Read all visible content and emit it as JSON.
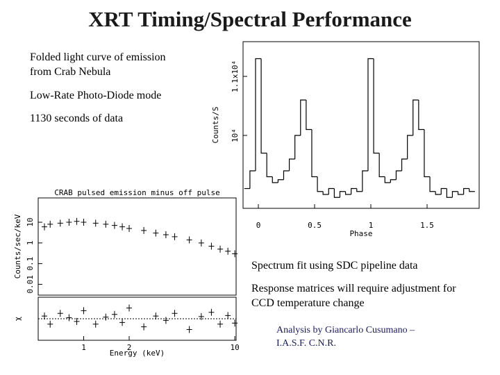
{
  "title": "XRT Timing/Spectral Performance",
  "notes": {
    "light_curve": [
      "Folded light curve of emission from Crab Nebula",
      "Low-Rate Photo-Diode mode",
      "1130 seconds of data"
    ],
    "spectrum": [
      "Spectrum fit using SDC pipeline data",
      "Response matrices will require adjustment for CCD temperature change"
    ],
    "credit": "Analysis by Giancarlo Cusumano – I.A.S.F. C.N.R."
  },
  "chart_data": [
    {
      "type": "step",
      "xlabel": "Phase",
      "ylabel": "Counts/S",
      "x": [
        -0.1,
        -0.05,
        0,
        0.05,
        0.1,
        0.15,
        0.2,
        0.25,
        0.3,
        0.35,
        0.4,
        0.45,
        0.5,
        0.55,
        0.6,
        0.65,
        0.7,
        0.75,
        0.8,
        0.85,
        0.9,
        0.95,
        1,
        1.05,
        1.1,
        1.15,
        1.2,
        1.25,
        1.3,
        1.35,
        1.4,
        1.45,
        1.5,
        1.55,
        1.6,
        1.65,
        1.7,
        1.75,
        1.8,
        1.85,
        1.9
      ],
      "values": [
        9100,
        9400,
        11300,
        9700,
        9300,
        9200,
        9250,
        9400,
        9600,
        10000,
        10600,
        10100,
        9300,
        9050,
        9000,
        9100,
        8950,
        9050,
        9000,
        9100,
        9050,
        9400,
        11300,
        9700,
        9300,
        9200,
        9250,
        9400,
        9600,
        10000,
        10600,
        10100,
        9300,
        9050,
        9000,
        9100,
        8950,
        9050,
        9000,
        9100,
        9050
      ],
      "color": "#000000",
      "xlim": [
        -0.136,
        1.963
      ],
      "xticks": [
        0,
        0.5,
        1,
        1.5
      ],
      "ylim": [
        8765,
        11588
      ],
      "yticks": [
        {
          "value": 10000,
          "label": "10⁴"
        },
        {
          "value": 11000,
          "label": "1.1x10⁴"
        }
      ]
    },
    {
      "type": "scatter",
      "title": "CRAB pulsed emission minus off pulse",
      "ylabel": "Counts/sec/keV",
      "log_x": true,
      "log_y": true,
      "x": [
        0.55,
        0.6,
        0.7,
        0.8,
        0.9,
        1,
        1.2,
        1.4,
        1.6,
        1.8,
        2,
        2.5,
        3,
        3.5,
        4,
        5,
        6,
        7,
        8,
        9,
        10
      ],
      "values": [
        6,
        8,
        9,
        10,
        11,
        10,
        9,
        8,
        7,
        6,
        5,
        4,
        3,
        2.5,
        2,
        1.4,
        1,
        0.7,
        0.5,
        0.4,
        0.3
      ],
      "color": "#000000",
      "xlim": [
        0.5,
        10.2
      ],
      "ylim": [
        0.003,
        150
      ],
      "yticks": [
        10,
        1,
        0.1,
        0.01
      ]
    },
    {
      "type": "scatter",
      "xlabel": "Energy (keV)",
      "ylabel": "χ",
      "log_x": true,
      "x": [
        0.55,
        0.6,
        0.7,
        0.8,
        0.9,
        1,
        1.2,
        1.4,
        1.6,
        1.8,
        2,
        2.5,
        3,
        3.5,
        4,
        5,
        6,
        7,
        8,
        9,
        10
      ],
      "values": [
        0.5,
        -1,
        1,
        0.2,
        -0.5,
        1.5,
        -1,
        0.3,
        0.8,
        -0.7,
        2,
        -1.5,
        0.5,
        -0.3,
        1,
        -2,
        0.4,
        1.2,
        -1,
        0.6,
        -0.8
      ],
      "color": "#000000",
      "xlim": [
        0.5,
        10.2
      ],
      "xticks": [
        1,
        2,
        10
      ],
      "ylim": [
        -4,
        4
      ]
    }
  ]
}
